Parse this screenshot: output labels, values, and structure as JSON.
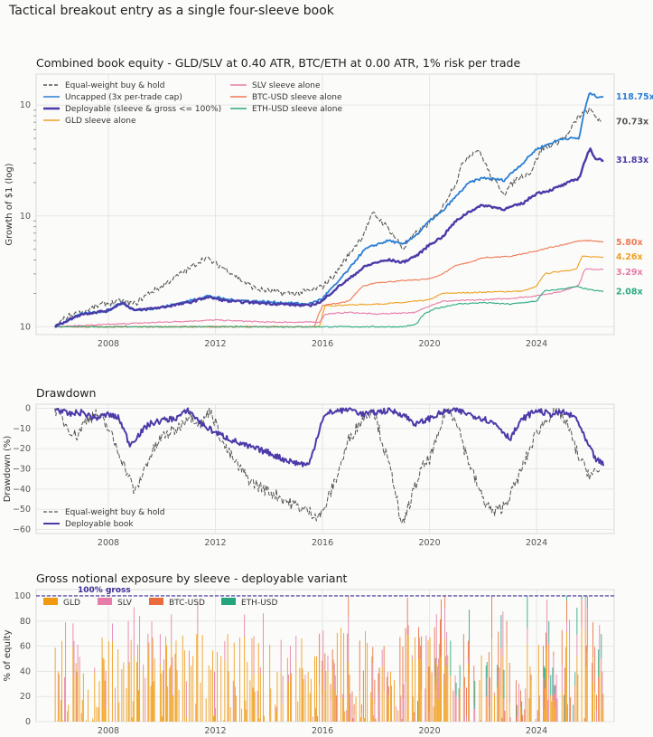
{
  "suptitle": "Tactical breakout entry as a single four-sleeve book",
  "chart_data": [
    {
      "type": "line",
      "title": "Combined book equity - GLD/SLV at 0.40 ATR, BTC/ETH at 0.00 ATR, 1% risk per trade",
      "ylabel": "Growth of $1 (log)",
      "xlabel": "",
      "yscale": "log",
      "ylim": [
        0.85,
        190
      ],
      "xlim": [
        2005.3,
        2026.9
      ],
      "xticks": [
        "2008",
        "2012",
        "2016",
        "2020",
        "2024"
      ],
      "yticks": [
        "10^0",
        "10^1",
        "10^2"
      ],
      "grid": true,
      "legend_position": "top-left",
      "series": [
        {
          "name": "Equal-weight buy & hold",
          "color": "#555555",
          "dashed": true,
          "end_label": "70.73x",
          "x": [
            2006.0,
            2006.5,
            2007.0,
            2007.8,
            2008.5,
            2009.0,
            2009.5,
            2010.0,
            2010.5,
            2011.0,
            2011.6,
            2012.0,
            2012.5,
            2013.0,
            2013.5,
            2014.0,
            2014.5,
            2015.0,
            2015.5,
            2016.0,
            2016.5,
            2017.0,
            2017.5,
            2017.9,
            2018.5,
            2019.0,
            2019.5,
            2020.0,
            2020.5,
            2021.0,
            2021.3,
            2021.8,
            2022.3,
            2022.8,
            2023.3,
            2023.8,
            2024.2,
            2024.7,
            2025.2,
            2025.6,
            2026.0,
            2026.4
          ],
          "y": [
            1.0,
            1.25,
            1.35,
            1.6,
            1.7,
            1.6,
            2.0,
            2.3,
            2.8,
            3.3,
            4.2,
            3.7,
            3.2,
            2.6,
            2.2,
            2.1,
            2.0,
            2.0,
            2.1,
            2.3,
            3.0,
            4.5,
            6.5,
            10.5,
            7.5,
            5.0,
            7.0,
            8.5,
            12.0,
            20.0,
            32.0,
            40.0,
            22.0,
            16.0,
            22.0,
            25.0,
            40.0,
            45.0,
            55.0,
            80.0,
            90.0,
            70.73
          ]
        },
        {
          "name": "Uncapped (3x per-trade cap)",
          "color": "#2b7fd4",
          "dashed": false,
          "end_label": "118.75x",
          "x": [
            2006.0,
            2007.0,
            2008.0,
            2008.5,
            2009.0,
            2010.0,
            2011.0,
            2011.7,
            2012.5,
            2013.5,
            2014.5,
            2015.5,
            2016.0,
            2016.5,
            2017.0,
            2017.6,
            2018.0,
            2018.5,
            2019.0,
            2019.6,
            2020.0,
            2020.5,
            2021.0,
            2021.5,
            2022.0,
            2022.8,
            2023.5,
            2024.0,
            2024.5,
            2025.0,
            2025.6,
            2026.0,
            2026.2,
            2026.5
          ],
          "y": [
            1.0,
            1.3,
            1.4,
            1.65,
            1.4,
            1.5,
            1.7,
            1.9,
            1.75,
            1.7,
            1.65,
            1.6,
            1.8,
            2.4,
            3.3,
            5.0,
            5.5,
            6.0,
            5.5,
            7.0,
            9.0,
            11.0,
            15.0,
            20.0,
            22.0,
            21.0,
            30.0,
            40.0,
            45.0,
            50.0,
            50.0,
            130.0,
            120.0,
            118.75
          ]
        },
        {
          "name": "Deployable (sleeve & gross <= 100%)",
          "color": "#4b3aa8",
          "dashed": false,
          "end_label": "31.83x",
          "x": [
            2006.0,
            2007.0,
            2008.0,
            2008.5,
            2009.0,
            2010.0,
            2011.0,
            2011.7,
            2012.5,
            2013.5,
            2014.5,
            2015.5,
            2016.0,
            2016.5,
            2017.0,
            2017.6,
            2018.0,
            2018.5,
            2019.0,
            2019.6,
            2020.0,
            2020.5,
            2021.0,
            2021.5,
            2022.0,
            2022.8,
            2023.5,
            2024.0,
            2024.5,
            2025.0,
            2025.6,
            2026.0,
            2026.2,
            2026.5
          ],
          "y": [
            1.0,
            1.3,
            1.4,
            1.65,
            1.4,
            1.5,
            1.65,
            1.85,
            1.7,
            1.65,
            1.6,
            1.55,
            1.7,
            2.2,
            2.7,
            3.5,
            3.8,
            4.0,
            3.8,
            4.5,
            5.5,
            6.5,
            9.0,
            11.0,
            12.5,
            11.5,
            13.0,
            16.0,
            17.0,
            19.0,
            22.0,
            40.0,
            33.0,
            31.83
          ]
        },
        {
          "name": "GLD sleeve alone",
          "color": "#f0a020",
          "dashed": false,
          "end_label": "4.26x",
          "x": [
            2006.0,
            2008.0,
            2010.0,
            2012.0,
            2014.0,
            2015.9,
            2016.1,
            2018.0,
            2019.0,
            2020.0,
            2020.5,
            2022.0,
            2023.5,
            2024.0,
            2024.3,
            2025.0,
            2025.5,
            2025.7,
            2026.5
          ],
          "y": [
            1.0,
            1.0,
            1.0,
            1.0,
            1.0,
            1.0,
            1.55,
            1.6,
            1.65,
            1.75,
            2.0,
            2.05,
            2.1,
            2.3,
            3.0,
            3.2,
            3.3,
            4.3,
            4.26
          ]
        },
        {
          "name": "SLV sleeve alone",
          "color": "#e87aa8",
          "dashed": false,
          "end_label": "3.29x",
          "x": [
            2006.0,
            2008.0,
            2010.0,
            2012.0,
            2014.0,
            2015.9,
            2016.1,
            2017.0,
            2018.0,
            2019.5,
            2020.0,
            2020.5,
            2022.0,
            2023.0,
            2024.0,
            2024.5,
            2025.0,
            2025.6,
            2025.8,
            2026.5
          ],
          "y": [
            1.0,
            1.05,
            1.1,
            1.15,
            1.1,
            1.1,
            1.3,
            1.35,
            1.3,
            1.35,
            1.55,
            1.7,
            1.75,
            1.8,
            1.9,
            2.0,
            2.1,
            2.4,
            3.3,
            3.29
          ]
        },
        {
          "name": "BTC-USD sleeve alone",
          "color": "#ee7a55",
          "dashed": false,
          "end_label": "5.80x",
          "x": [
            2006.0,
            2010.0,
            2014.0,
            2015.7,
            2016.0,
            2017.0,
            2017.5,
            2018.0,
            2019.0,
            2020.0,
            2020.5,
            2021.0,
            2021.5,
            2022.0,
            2023.0,
            2024.0,
            2024.5,
            2025.0,
            2025.5,
            2026.0,
            2026.5
          ],
          "y": [
            1.0,
            1.0,
            1.0,
            1.0,
            1.55,
            1.7,
            2.3,
            2.5,
            2.6,
            2.7,
            3.0,
            3.6,
            3.8,
            4.2,
            4.3,
            4.8,
            5.2,
            5.5,
            5.9,
            6.0,
            5.8
          ]
        },
        {
          "name": "ETH-USD sleeve alone",
          "color": "#2aaa80",
          "dashed": false,
          "end_label": "2.08x",
          "x": [
            2006.0,
            2012.0,
            2016.0,
            2018.0,
            2019.0,
            2019.5,
            2019.8,
            2020.2,
            2021.0,
            2022.0,
            2023.0,
            2024.0,
            2024.3,
            2025.0,
            2025.5,
            2026.0,
            2026.5
          ],
          "y": [
            1.0,
            1.0,
            1.0,
            1.0,
            1.0,
            1.05,
            1.3,
            1.45,
            1.6,
            1.65,
            1.6,
            1.7,
            2.1,
            2.2,
            2.3,
            2.15,
            2.08
          ]
        }
      ]
    },
    {
      "type": "line",
      "title": "Drawdown",
      "ylabel": "Drawdown (%)",
      "xlabel": "",
      "ylim": [
        -62,
        2
      ],
      "xlim": [
        2005.3,
        2026.9
      ],
      "xticks": [
        "2008",
        "2012",
        "2016",
        "2020",
        "2024"
      ],
      "yticks": [
        0,
        -10,
        -20,
        -30,
        -40,
        -50,
        -60
      ],
      "grid": true,
      "legend_position": "bottom-left",
      "series": [
        {
          "name": "Equal-weight buy & hold",
          "color": "#555555",
          "dashed": true,
          "x": [
            2006.0,
            2006.4,
            2006.8,
            2007.2,
            2007.6,
            2008.0,
            2008.4,
            2008.8,
            2009.0,
            2009.5,
            2010.0,
            2010.6,
            2011.0,
            2011.5,
            2011.8,
            2012.3,
            2012.8,
            2013.3,
            2013.8,
            2014.3,
            2014.8,
            2015.3,
            2015.8,
            2016.0,
            2016.5,
            2017.0,
            2017.5,
            2017.9,
            2018.3,
            2018.7,
            2018.95,
            2019.3,
            2019.7,
            2020.0,
            2020.3,
            2020.6,
            2021.0,
            2021.3,
            2021.7,
            2022.0,
            2022.4,
            2022.8,
            2023.2,
            2023.6,
            2024.0,
            2024.4,
            2024.8,
            2025.2,
            2025.6,
            2026.0,
            2026.4
          ],
          "y": [
            0,
            -8,
            -14,
            -5,
            -3,
            -10,
            -22,
            -35,
            -42,
            -25,
            -14,
            -10,
            -3,
            -8,
            0,
            -18,
            -28,
            -36,
            -40,
            -43,
            -47,
            -50,
            -53,
            -52,
            -35,
            -15,
            -5,
            0,
            -20,
            -38,
            -60,
            -45,
            -30,
            -25,
            -15,
            0,
            -5,
            -20,
            -35,
            -45,
            -52,
            -48,
            -38,
            -25,
            -12,
            -5,
            0,
            -10,
            -25,
            -33,
            -31
          ]
        },
        {
          "name": "Deployable book",
          "color": "#4b3aa8",
          "dashed": false,
          "x": [
            2006.0,
            2006.5,
            2007.0,
            2007.5,
            2008.0,
            2008.4,
            2008.8,
            2009.0,
            2009.5,
            2010.0,
            2010.5,
            2011.0,
            2011.5,
            2012.0,
            2012.5,
            2013.0,
            2013.5,
            2014.0,
            2014.5,
            2015.0,
            2015.5,
            2016.0,
            2016.3,
            2016.7,
            2017.0,
            2017.5,
            2018.0,
            2018.5,
            2019.0,
            2019.5,
            2020.0,
            2020.5,
            2021.0,
            2021.5,
            2022.0,
            2022.5,
            2023.0,
            2023.5,
            2024.0,
            2024.5,
            2025.0,
            2025.5,
            2025.8,
            2026.2,
            2026.5
          ],
          "y": [
            0,
            -3,
            -2,
            -5,
            -3,
            -5,
            -18,
            -15,
            -8,
            -6,
            -5,
            -1,
            -8,
            -12,
            -15,
            -18,
            -20,
            -22,
            -25,
            -27,
            -28,
            -5,
            -2,
            -1,
            0,
            -3,
            -2,
            -1,
            -3,
            -8,
            -5,
            -2,
            -1,
            -3,
            -5,
            -8,
            -15,
            -5,
            -1,
            -3,
            -2,
            -5,
            -15,
            -25,
            -28
          ]
        }
      ]
    },
    {
      "type": "area",
      "title": "Gross notional exposure by sleeve - deployable variant",
      "ylabel": "% of equity",
      "xlabel": "",
      "ylim": [
        0,
        105
      ],
      "xlim": [
        2005.3,
        2026.9
      ],
      "xticks": [
        "2008",
        "2012",
        "2016",
        "2020",
        "2024"
      ],
      "yticks": [
        0,
        20,
        40,
        60,
        80,
        100
      ],
      "annotation": "100% gross",
      "reference_line": 100,
      "legend_position": "top-left",
      "grid": true,
      "series": [
        {
          "name": "GLD",
          "color": "#ef9a12"
        },
        {
          "name": "SLV",
          "color": "#e77ca9"
        },
        {
          "name": "BTC-USD",
          "color": "#ea6b3c"
        },
        {
          "name": "ETH-USD",
          "color": "#24a57e"
        }
      ]
    }
  ]
}
